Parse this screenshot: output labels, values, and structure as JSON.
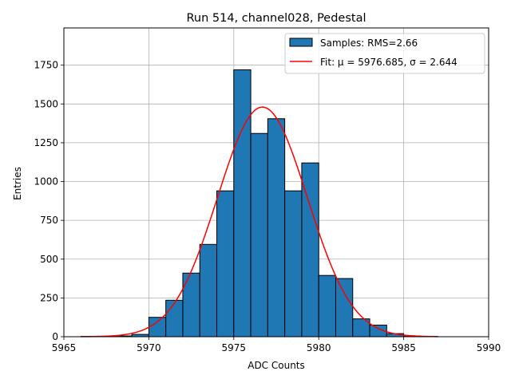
{
  "chart_data": {
    "type": "bar",
    "title": "Run 514, channel028, Pedestal",
    "xlabel": "ADC Counts",
    "ylabel": "Entries",
    "xlim": [
      5965,
      5990
    ],
    "ylim": [
      0,
      1990
    ],
    "xticks": [
      5965,
      5970,
      5975,
      5980,
      5985,
      5990
    ],
    "yticks": [
      0,
      250,
      500,
      750,
      1000,
      1250,
      1500,
      1750
    ],
    "grid": true,
    "legend_position": "top-right",
    "bin_width": 1,
    "bins": [
      {
        "x0": 5966,
        "count": 2
      },
      {
        "x0": 5967,
        "count": 3
      },
      {
        "x0": 5968,
        "count": 5
      },
      {
        "x0": 5969,
        "count": 15
      },
      {
        "x0": 5970,
        "count": 125
      },
      {
        "x0": 5971,
        "count": 235
      },
      {
        "x0": 5972,
        "count": 410
      },
      {
        "x0": 5973,
        "count": 595
      },
      {
        "x0": 5974,
        "count": 940
      },
      {
        "x0": 5975,
        "count": 1720
      },
      {
        "x0": 5976,
        "count": 1310
      },
      {
        "x0": 5977,
        "count": 1405
      },
      {
        "x0": 5978,
        "count": 940
      },
      {
        "x0": 5979,
        "count": 1120
      },
      {
        "x0": 5980,
        "count": 395
      },
      {
        "x0": 5981,
        "count": 375
      },
      {
        "x0": 5982,
        "count": 115
      },
      {
        "x0": 5983,
        "count": 75
      },
      {
        "x0": 5984,
        "count": 20
      },
      {
        "x0": 5985,
        "count": 5
      },
      {
        "x0": 5986,
        "count": 2
      }
    ],
    "series": [
      {
        "name": "Samples: RMS=2.66",
        "kind": "histogram",
        "color": "#1f77b4",
        "edge_color": "#000000"
      },
      {
        "name": "Fit: μ = 5976.685, σ = 2.644",
        "kind": "gaussian_fit",
        "color": "#ff0000",
        "mu": 5976.685,
        "sigma": 2.644,
        "amplitude": 1480,
        "x_range": [
          5966,
          5987
        ]
      }
    ]
  }
}
